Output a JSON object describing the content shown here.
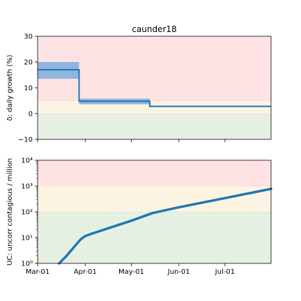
{
  "chart_data": [
    {
      "type": "line",
      "title": "caunder18",
      "ylabel": "δ: daily growth (%)",
      "ylim": [
        -10,
        30
      ],
      "yticks": [
        "−10",
        "0",
        "10",
        "20",
        "30"
      ],
      "zones": [
        {
          "from": -10,
          "to": 0,
          "color": "#e5f0e3"
        },
        {
          "from": 0,
          "to": 5,
          "color": "#fcf4e3"
        },
        {
          "from": 5,
          "to": 30,
          "color": "#fde3e3"
        }
      ],
      "series": [
        {
          "line_color": "#1f77b4",
          "band_color": "#8ab2dd",
          "segments": [
            {
              "start": "2020-03-01",
              "end": "2020-03-28",
              "value": 17,
              "lo": 13.5,
              "hi": 20
            },
            {
              "start": "2020-03-28",
              "end": "2020-05-13",
              "value": 4.8,
              "lo": 3.6,
              "hi": 5.8
            },
            {
              "start": "2020-05-13",
              "end": "2020-07-31",
              "value": 2.8,
              "lo": 2.7,
              "hi": 2.9
            }
          ]
        }
      ]
    },
    {
      "type": "line",
      "ylabel": "UC: uncorr contagious / million",
      "scale": "log",
      "ylim": [
        1,
        10000
      ],
      "yticks": [
        "10⁰",
        "10¹",
        "10²",
        "10³",
        "10⁴"
      ],
      "xlim": [
        "2020-03-01",
        "2020-07-31"
      ],
      "xticks": [
        "Mar-01",
        "Apr-01",
        "May-01",
        "Jun-01",
        "Jul-01"
      ],
      "xtick_dates": [
        "2020-03-01",
        "2020-04-01",
        "2020-05-01",
        "2020-06-01",
        "2020-07-01"
      ],
      "zones": [
        {
          "from": 1,
          "to": 100,
          "color": "#e5f0e3"
        },
        {
          "from": 100,
          "to": 1000,
          "color": "#fcf4e3"
        },
        {
          "from": 1000,
          "to": 10000,
          "color": "#fde3e3"
        }
      ],
      "series": [
        {
          "line_color": "#1f77b4",
          "points": [
            {
              "x": "2020-03-15",
              "y": 1.0
            },
            {
              "x": "2020-03-20",
              "y": 2.0
            },
            {
              "x": "2020-03-25",
              "y": 4.5
            },
            {
              "x": "2020-03-29",
              "y": 8.5
            },
            {
              "x": "2020-04-01",
              "y": 11.5
            },
            {
              "x": "2020-04-05",
              "y": 14
            },
            {
              "x": "2020-04-15",
              "y": 22
            },
            {
              "x": "2020-05-01",
              "y": 45
            },
            {
              "x": "2020-05-15",
              "y": 90
            },
            {
              "x": "2020-06-01",
              "y": 150
            },
            {
              "x": "2020-07-01",
              "y": 340
            },
            {
              "x": "2020-07-31",
              "y": 780
            }
          ]
        }
      ]
    }
  ]
}
